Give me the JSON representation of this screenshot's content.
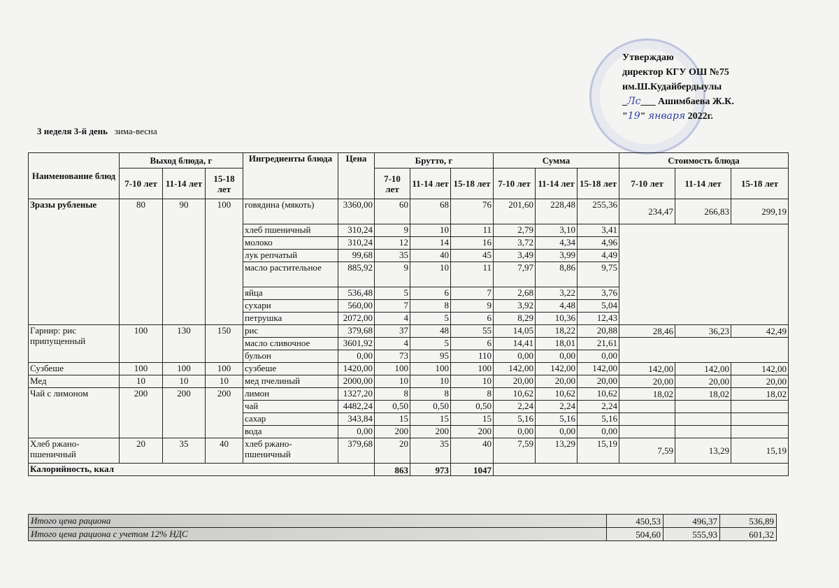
{
  "approval": {
    "line1": "Утверждаю",
    "line2": "директор КГУ ОШ №75",
    "line3": "им.Ш.Кудайбердыулы",
    "signature": "Лс",
    "signer": "Ашимбаева Ж.К.",
    "date_day": "19",
    "date_month": "января",
    "date_year": "2022г."
  },
  "title": {
    "week_day": "3 неделя 3-й день",
    "season": "зима-весна"
  },
  "headers": {
    "dish_name": "Наименование блюд",
    "output": "Выход блюда, г",
    "ingredients": "Ингредиенты блюда",
    "price": "Цена",
    "gross": "Брутто, г",
    "sum": "Сумма",
    "cost": "Стоимость блюда",
    "ages": [
      "7-10 лет",
      "11-14 лет",
      "15-18 лет"
    ]
  },
  "dishes": [
    {
      "name": "Зразы рубленые",
      "output": [
        "80",
        "90",
        "100"
      ],
      "cost": [
        "234,47",
        "266,83",
        "299,19"
      ],
      "ingredients": [
        {
          "name": "говядина (мякоть)",
          "price": "3360,00",
          "gross": [
            "60",
            "68",
            "76"
          ],
          "sum": [
            "201,60",
            "228,48",
            "255,36"
          ]
        },
        {
          "name": "хлеб пшеничный",
          "price": "310,24",
          "gross": [
            "9",
            "10",
            "11"
          ],
          "sum": [
            "2,79",
            "3,10",
            "3,41"
          ]
        },
        {
          "name": "молоко",
          "price": "310,24",
          "gross": [
            "12",
            "14",
            "16"
          ],
          "sum": [
            "3,72",
            "4,34",
            "4,96"
          ]
        },
        {
          "name": "лук репчатый",
          "price": "99,68",
          "gross": [
            "35",
            "40",
            "45"
          ],
          "sum": [
            "3,49",
            "3,99",
            "4,49"
          ]
        },
        {
          "name": "масло растительное",
          "price": "885,92",
          "gross": [
            "9",
            "10",
            "11"
          ],
          "sum": [
            "7,97",
            "8,86",
            "9,75"
          ]
        },
        {
          "name": "яйца",
          "price": "536,48",
          "gross": [
            "5",
            "6",
            "7"
          ],
          "sum": [
            "2,68",
            "3,22",
            "3,76"
          ]
        },
        {
          "name": "сухари",
          "price": "560,00",
          "gross": [
            "7",
            "8",
            "9"
          ],
          "sum": [
            "3,92",
            "4,48",
            "5,04"
          ]
        },
        {
          "name": "петрушка",
          "price": "2072,00",
          "gross": [
            "4",
            "5",
            "6"
          ],
          "sum": [
            "8,29",
            "10,36",
            "12,43"
          ]
        }
      ]
    },
    {
      "name": "Гарнир: рис припущенный",
      "output": [
        "100",
        "130",
        "150"
      ],
      "cost": [
        "28,46",
        "36,23",
        "42,49"
      ],
      "ingredients": [
        {
          "name": "рис",
          "price": "379,68",
          "gross": [
            "37",
            "48",
            "55"
          ],
          "sum": [
            "14,05",
            "18,22",
            "20,88"
          ]
        },
        {
          "name": "масло сливочное",
          "price": "3601,92",
          "gross": [
            "4",
            "5",
            "6"
          ],
          "sum": [
            "14,41",
            "18,01",
            "21,61"
          ]
        },
        {
          "name": "бульон",
          "price": "0,00",
          "gross": [
            "73",
            "95",
            "110"
          ],
          "sum": [
            "0,00",
            "0,00",
            "0,00"
          ]
        }
      ]
    },
    {
      "name": "Сузбеше",
      "output": [
        "100",
        "100",
        "100"
      ],
      "cost": [
        "142,00",
        "142,00",
        "142,00"
      ],
      "ingredients": [
        {
          "name": "сузбеше",
          "price": "1420,00",
          "gross": [
            "100",
            "100",
            "100"
          ],
          "sum": [
            "142,00",
            "142,00",
            "142,00"
          ]
        }
      ]
    },
    {
      "name": "Мед",
      "output": [
        "10",
        "10",
        "10"
      ],
      "cost": [
        "20,00",
        "20,00",
        "20,00"
      ],
      "ingredients": [
        {
          "name": "мед пчелиный",
          "price": "2000,00",
          "gross": [
            "10",
            "10",
            "10"
          ],
          "sum": [
            "20,00",
            "20,00",
            "20,00"
          ]
        }
      ]
    },
    {
      "name": "Чай с лимоном",
      "output": [
        "200",
        "200",
        "200"
      ],
      "cost": [
        "18,02",
        "18,02",
        "18,02"
      ],
      "ingredients": [
        {
          "name": "лимон",
          "price": "1327,20",
          "gross": [
            "8",
            "8",
            "8"
          ],
          "sum": [
            "10,62",
            "10,62",
            "10,62"
          ]
        },
        {
          "name": "чай",
          "price": "4482,24",
          "gross": [
            "0,50",
            "0,50",
            "0,50"
          ],
          "sum": [
            "2,24",
            "2,24",
            "2,24"
          ]
        },
        {
          "name": "сахар",
          "price": "343,84",
          "gross": [
            "15",
            "15",
            "15"
          ],
          "sum": [
            "5,16",
            "5,16",
            "5,16"
          ]
        },
        {
          "name": "вода",
          "price": "0,00",
          "gross": [
            "200",
            "200",
            "200"
          ],
          "sum": [
            "0,00",
            "0,00",
            "0,00"
          ]
        }
      ]
    },
    {
      "name": "Хлеб ржано-пшеничный",
      "output": [
        "20",
        "35",
        "40"
      ],
      "cost": [
        "7,59",
        "13,29",
        "15,19"
      ],
      "ingredients": [
        {
          "name": "хлеб ржано-пшеничный",
          "price": "379,68",
          "gross": [
            "20",
            "35",
            "40"
          ],
          "sum": [
            "7,59",
            "13,29",
            "15,19"
          ]
        }
      ]
    }
  ],
  "calories": {
    "label": "Калорийность, ккал",
    "values": [
      "863",
      "973",
      "1047"
    ]
  },
  "totals": [
    {
      "label": "Итого цена рациона",
      "values": [
        "450,53",
        "496,37",
        "536,89"
      ]
    },
    {
      "label": "Итого цена рациона с учетом 12% НДС",
      "values": [
        "504,60",
        "555,93",
        "601,32"
      ]
    }
  ]
}
